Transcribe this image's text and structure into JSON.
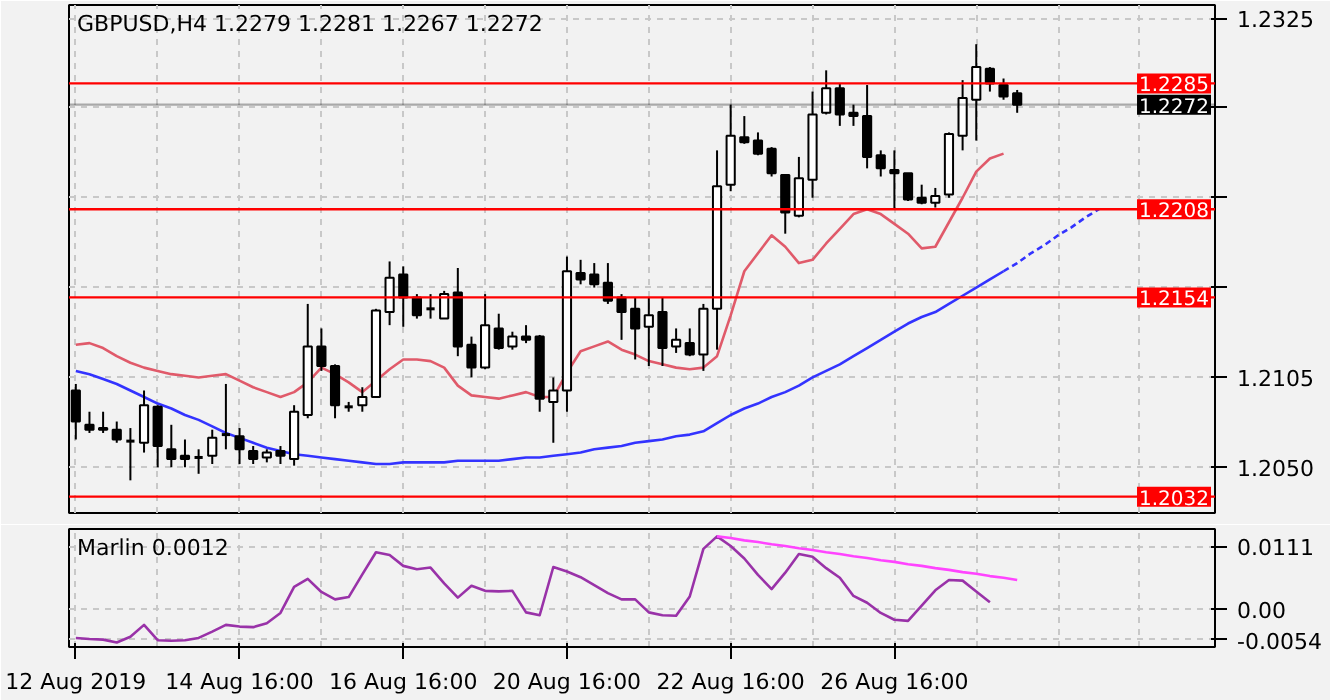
{
  "chart_data": [
    {
      "type": "candlestick",
      "title": "GBPUSD,H4  1.2279 1.2281 1.2267 1.2272",
      "categories": [
        null,
        null,
        null,
        null,
        null,
        null,
        null,
        null,
        null,
        null,
        null,
        null,
        null,
        null,
        null,
        null,
        null,
        null,
        null,
        null,
        null,
        null,
        null,
        null,
        null,
        null,
        null,
        null,
        null,
        null,
        null,
        null,
        null,
        null,
        null,
        null,
        null,
        null,
        null,
        null,
        null,
        null,
        null,
        null,
        null,
        null,
        null,
        null,
        null,
        null,
        null,
        null,
        null,
        null,
        null,
        null,
        null,
        null,
        null,
        null,
        null,
        null,
        null,
        null,
        null,
        null,
        null,
        null,
        null,
        null,
        null,
        null,
        null,
        null,
        null,
        null,
        null,
        null,
        null,
        null,
        null,
        null,
        null,
        null
      ],
      "ohlc": [
        [
          1.2097,
          1.2101,
          1.2067,
          1.2078
        ],
        [
          1.2076,
          1.2084,
          1.2071,
          1.2073
        ],
        [
          1.2074,
          1.2084,
          1.2071,
          1.2073
        ],
        [
          1.2073,
          1.2078,
          1.2065,
          1.2067
        ],
        [
          1.2066,
          1.2074,
          1.2042,
          1.2066
        ],
        [
          1.2065,
          1.2097,
          1.2059,
          1.2088
        ],
        [
          1.2087,
          1.2088,
          1.205,
          1.2063
        ],
        [
          1.2061,
          1.2076,
          1.205,
          1.2055
        ],
        [
          1.2057,
          1.2067,
          1.205,
          1.2055
        ],
        [
          1.2056,
          1.2061,
          1.2046,
          1.2056
        ],
        [
          1.2057,
          1.2073,
          1.2052,
          1.2068
        ],
        [
          1.207,
          1.2101,
          1.2061,
          1.207
        ],
        [
          1.2069,
          1.2074,
          1.2052,
          1.2061
        ],
        [
          1.206,
          1.2063,
          1.2052,
          1.2055
        ],
        [
          1.2056,
          1.2061,
          1.2053,
          1.2059
        ],
        [
          1.206,
          1.2063,
          1.2052,
          1.2057
        ],
        [
          1.2055,
          1.2088,
          1.2051,
          1.2084
        ],
        [
          1.2082,
          1.215,
          1.208,
          1.2124
        ],
        [
          1.2124,
          1.2135,
          1.2109,
          1.2112
        ],
        [
          1.2112,
          1.2113,
          1.208,
          1.2088
        ],
        [
          1.2087,
          1.209,
          1.2084,
          1.2087
        ],
        [
          1.2088,
          1.2099,
          1.2084,
          1.2093
        ],
        [
          1.2093,
          1.2147,
          1.2093,
          1.2146
        ],
        [
          1.2145,
          1.2176,
          1.2137,
          1.2166
        ],
        [
          1.2168,
          1.2173,
          1.2136,
          1.2154
        ],
        [
          1.2154,
          1.2156,
          1.2141,
          1.2143
        ],
        [
          1.2147,
          1.2156,
          1.2141,
          1.2147
        ],
        [
          1.2141,
          1.2158,
          1.2141,
          1.2156
        ],
        [
          1.2157,
          1.2172,
          1.2118,
          1.2124
        ],
        [
          1.2125,
          1.213,
          1.2105,
          1.2111
        ],
        [
          1.2111,
          1.2156,
          1.211,
          1.2137
        ],
        [
          1.2135,
          1.2144,
          1.2122,
          1.2123
        ],
        [
          1.2124,
          1.2133,
          1.2122,
          1.213
        ],
        [
          1.213,
          1.2137,
          1.2126,
          1.2128
        ],
        [
          1.213,
          1.2131,
          1.2084,
          1.2092
        ],
        [
          1.209,
          1.2105,
          1.2065,
          1.2097
        ],
        [
          1.2097,
          1.2179,
          1.2084,
          1.217
        ],
        [
          1.2169,
          1.2177,
          1.2162,
          1.2165
        ],
        [
          1.2168,
          1.2175,
          1.216,
          1.2162
        ],
        [
          1.2163,
          1.2175,
          1.215,
          1.2152
        ],
        [
          1.2154,
          1.2156,
          1.2128,
          1.2145
        ],
        [
          1.2147,
          1.2154,
          1.2116,
          1.2135
        ],
        [
          1.2136,
          1.2154,
          1.2112,
          1.2143
        ],
        [
          1.2145,
          1.2154,
          1.2112,
          1.2123
        ],
        [
          1.2124,
          1.2135,
          1.212,
          1.2128
        ],
        [
          1.2126,
          1.2135,
          1.2118,
          1.2119
        ],
        [
          1.2119,
          1.215,
          1.2109,
          1.2147
        ],
        [
          1.2147,
          1.2244,
          1.2122,
          1.2222
        ],
        [
          1.2223,
          1.2272,
          1.2219,
          1.2253
        ],
        [
          1.2252,
          1.2265,
          1.2248,
          1.2249
        ],
        [
          1.225,
          1.2255,
          1.2241,
          1.2242
        ],
        [
          1.2245,
          1.2246,
          1.2228,
          1.223
        ],
        [
          1.2229,
          1.2229,
          1.2193,
          1.2206
        ],
        [
          1.2204,
          1.224,
          1.2203,
          1.2227
        ],
        [
          1.2226,
          1.228,
          1.2215,
          1.2266
        ],
        [
          1.2267,
          1.2293,
          1.2266,
          1.2282
        ],
        [
          1.2282,
          1.2285,
          1.2259,
          1.2266
        ],
        [
          1.2267,
          1.2272,
          1.2259,
          1.2265
        ],
        [
          1.2265,
          1.2284,
          1.2233,
          1.224
        ],
        [
          1.2241,
          1.2244,
          1.2228,
          1.2233
        ],
        [
          1.2232,
          1.2244,
          1.2208,
          1.223
        ],
        [
          1.223,
          1.223,
          1.2213,
          1.2214
        ],
        [
          1.2215,
          1.2223,
          1.2211,
          1.2212
        ],
        [
          1.2212,
          1.2221,
          1.2209,
          1.2216
        ],
        [
          1.2217,
          1.2255,
          1.2215,
          1.2254
        ],
        [
          1.2253,
          1.2287,
          1.2244,
          1.2276
        ],
        [
          1.2275,
          1.2309,
          1.225,
          1.2295
        ],
        [
          1.2294,
          1.2295,
          1.228,
          1.2285
        ],
        [
          1.2284,
          1.2288,
          1.2275,
          1.2277
        ],
        [
          1.2279,
          1.2281,
          1.2267,
          1.2272
        ],
        null,
        null,
        null,
        null,
        null,
        null,
        null,
        null,
        null,
        null,
        null,
        null,
        null,
        null
      ],
      "series": [
        {
          "type": "line",
          "color": "#e05a6a",
          "values": [
            1.2125,
            1.2126,
            1.2123,
            1.2118,
            1.2114,
            1.2111,
            1.2109,
            1.2107,
            1.2106,
            1.2105,
            1.2106,
            1.2107,
            1.2103,
            1.2099,
            1.2096,
            1.2093,
            1.2096,
            1.2102,
            1.2111,
            1.2107,
            1.2102,
            1.2096,
            1.2103,
            1.211,
            1.2116,
            1.2116,
            1.2115,
            1.2111,
            1.21,
            1.2094,
            1.2093,
            1.2092,
            1.2094,
            1.2096,
            1.2093,
            1.2093,
            1.2108,
            1.2121,
            1.2124,
            1.2127,
            1.2122,
            1.2119,
            1.2115,
            1.2113,
            1.2111,
            1.211,
            1.2111,
            1.2118,
            1.2143,
            1.217,
            1.2181,
            1.2192,
            1.2185,
            1.2175,
            1.2177,
            1.2187,
            1.2196,
            1.2205,
            1.2208,
            1.2205,
            1.2199,
            1.2193,
            1.2184,
            1.2185,
            1.22,
            1.2215,
            1.2231,
            1.2239,
            1.2242,
            null,
            null,
            null,
            null,
            null,
            null,
            null,
            null,
            null,
            null,
            null,
            null,
            null,
            null,
            null
          ]
        },
        {
          "type": "line",
          "color": "#3333ff",
          "values": [
            1.2109,
            1.2107,
            1.2104,
            1.2101,
            1.2097,
            1.2093,
            1.2089,
            1.2086,
            1.2082,
            1.2079,
            1.2075,
            1.2071,
            1.2068,
            1.2065,
            1.2062,
            1.206,
            1.2058,
            1.2057,
            1.2056,
            1.2055,
            1.2054,
            1.2053,
            1.2052,
            1.2052,
            1.2053,
            1.2053,
            1.2053,
            1.2053,
            1.2054,
            1.2054,
            1.2054,
            1.2054,
            1.2055,
            1.2056,
            1.2056,
            1.2057,
            1.2058,
            1.2059,
            1.2061,
            1.2062,
            1.2063,
            1.2065,
            1.2066,
            1.2067,
            1.2069,
            1.207,
            1.2072,
            1.2077,
            1.2082,
            1.2086,
            1.2089,
            1.2093,
            1.2096,
            1.21,
            1.2105,
            1.2109,
            1.2113,
            1.2118,
            1.2123,
            1.2128,
            1.2133,
            1.2138,
            1.2142,
            1.2145,
            1.215,
            1.2155,
            1.216,
            1.2165,
            1.217,
            null,
            null,
            null,
            null,
            null,
            null,
            null,
            null,
            null,
            null,
            null,
            null,
            null,
            null,
            null
          ]
        },
        {
          "type": "line",
          "color": "#3333ff",
          "line_style": "dashed",
          "values": [
            null,
            null,
            null,
            null,
            null,
            null,
            null,
            null,
            null,
            null,
            null,
            null,
            null,
            null,
            null,
            null,
            null,
            null,
            null,
            null,
            null,
            null,
            null,
            null,
            null,
            null,
            null,
            null,
            null,
            null,
            null,
            null,
            null,
            null,
            null,
            null,
            null,
            null,
            null,
            null,
            null,
            null,
            null,
            null,
            null,
            null,
            null,
            null,
            null,
            null,
            null,
            null,
            null,
            null,
            null,
            null,
            null,
            null,
            null,
            null,
            null,
            null,
            null,
            null,
            null,
            null,
            null,
            null,
            1.217,
            1.2175,
            1.2181,
            1.2186,
            1.2192,
            1.2197,
            1.2203,
            1.2208,
            null,
            null,
            null,
            null,
            null,
            null,
            null,
            null
          ]
        }
      ],
      "ylim": [
        1.2022,
        1.2333
      ],
      "yticks": [
        1.2325,
        {
          "value": 1.227,
          "label": null
        },
        {
          "value": 1.2215,
          "label": null
        },
        {
          "value": 1.216,
          "label": null
        },
        1.2105,
        {
          "value": 1.205,
          "label": "1.2050"
        }
      ],
      "tick_labels": "y",
      "grid": true,
      "ref_lines": [
        {
          "axis": "y",
          "value": 1.2285,
          "label": "1.2285",
          "color": "#ff0000"
        },
        {
          "axis": "y",
          "value": 1.2272,
          "label": "1.2272",
          "color": "#000000"
        },
        {
          "axis": "y",
          "value": 1.2208,
          "label": "1.2208",
          "color": "#ff0000"
        },
        {
          "axis": "y",
          "value": 1.2154,
          "label": "1.2154",
          "color": "#ff0000"
        },
        {
          "axis": "y",
          "value": 1.2032,
          "label": "1.2032",
          "color": "#ff0000"
        }
      ]
    },
    {
      "type": "line",
      "title": "Marlin 0.0012",
      "categories": [
        "12 Aug 2019",
        null,
        null,
        null,
        null,
        null,
        null,
        null,
        null,
        null,
        null,
        null,
        "14 Aug 16:00",
        null,
        null,
        null,
        null,
        null,
        null,
        null,
        null,
        null,
        null,
        null,
        "16 Aug 16:00",
        null,
        null,
        null,
        null,
        null,
        null,
        null,
        null,
        null,
        null,
        null,
        "20 Aug 16:00",
        null,
        null,
        null,
        null,
        null,
        null,
        null,
        null,
        null,
        null,
        null,
        "22 Aug 16:00",
        null,
        null,
        null,
        null,
        null,
        null,
        null,
        null,
        null,
        null,
        null,
        "26 Aug 16:00",
        null,
        null,
        null,
        null,
        null,
        null,
        null,
        null,
        null,
        null,
        null,
        null,
        null,
        null,
        null,
        null,
        null,
        null,
        null,
        null,
        null,
        null,
        null
      ],
      "series": [
        {
          "color": "#9932a8",
          "values": [
            -0.0051,
            -0.0053,
            -0.0054,
            -0.0059,
            -0.0049,
            -0.0028,
            -0.0055,
            -0.0056,
            -0.0055,
            -0.0051,
            -0.004,
            -0.0028,
            -0.0031,
            -0.0032,
            -0.0025,
            -0.0007,
            0.0039,
            0.0053,
            0.003,
            0.0017,
            0.0021,
            0.0061,
            0.01,
            0.0095,
            0.0076,
            0.007,
            0.0073,
            0.0045,
            0.002,
            0.0041,
            0.0032,
            0.0031,
            0.0032,
            -0.0006,
            -0.0011,
            0.0074,
            0.0066,
            0.0056,
            0.0042,
            0.0028,
            0.0017,
            0.0017,
            -0.0006,
            -0.0011,
            -0.0012,
            0.0022,
            0.0106,
            0.0128,
            0.0111,
            0.0089,
            0.006,
            0.0035,
            0.0064,
            0.0097,
            0.0092,
            0.0072,
            0.0055,
            0.0023,
            0.0011,
            -0.0007,
            -0.0019,
            -0.0021,
            0.0006,
            0.0033,
            0.0051,
            0.005,
            0.0031,
            0.0012,
            null,
            null,
            null,
            null,
            null,
            null,
            null,
            null,
            null,
            null,
            null,
            null,
            null,
            null,
            null,
            null
          ]
        },
        {
          "color": "#ff44ff",
          "values": [
            null,
            null,
            null,
            null,
            null,
            null,
            null,
            null,
            null,
            null,
            null,
            null,
            null,
            null,
            null,
            null,
            null,
            null,
            null,
            null,
            null,
            null,
            null,
            null,
            null,
            null,
            null,
            null,
            null,
            null,
            null,
            null,
            null,
            null,
            null,
            null,
            null,
            null,
            null,
            null,
            null,
            null,
            null,
            null,
            null,
            null,
            null,
            0.0128,
            0.0125,
            0.0121,
            0.0118,
            0.0114,
            0.0111,
            0.0107,
            0.0104,
            0.01,
            0.0097,
            0.0093,
            0.009,
            0.0086,
            0.0083,
            0.0079,
            0.0076,
            0.0072,
            0.0069,
            0.0065,
            0.0062,
            0.0058,
            0.0055,
            0.0051,
            null,
            null,
            null,
            null,
            null,
            null,
            null,
            null,
            null,
            null,
            null,
            null,
            null,
            null
          ]
        }
      ],
      "ylim": [
        -0.0067,
        0.0141
      ],
      "yticks": [
        0.0111,
        {
          "value": 0,
          "label": "0.00"
        },
        -0.0054
      ],
      "grid": true
    }
  ]
}
